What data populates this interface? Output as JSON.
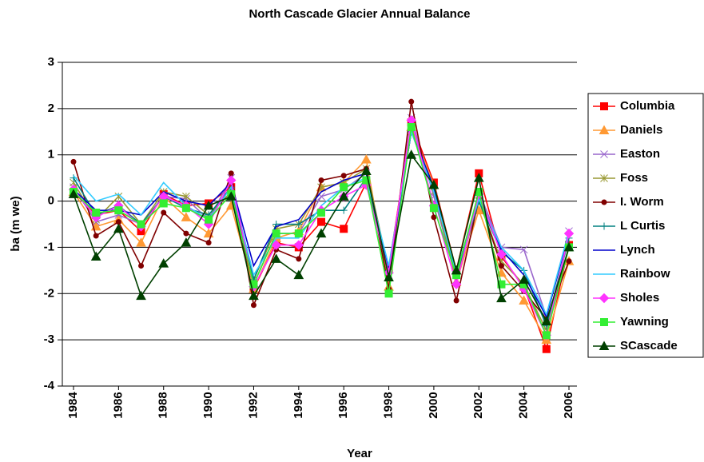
{
  "chart_data": {
    "type": "line",
    "title": "North Cascade Glacier Annual Balance",
    "x_label": "Year",
    "y_label": "ba (m we)",
    "x": [
      1984,
      1985,
      1986,
      1987,
      1988,
      1989,
      1990,
      1991,
      1992,
      1993,
      1994,
      1995,
      1996,
      1997,
      1998,
      1999,
      2000,
      2001,
      2002,
      2003,
      2004,
      2005,
      2006
    ],
    "xlim": [
      1984,
      2006
    ],
    "xticks": [
      1984,
      1986,
      1988,
      1990,
      1992,
      1994,
      1996,
      1998,
      2000,
      2002,
      2004,
      2006
    ],
    "ylim": [
      -4,
      3
    ],
    "yticks": [
      -4,
      -3,
      -2,
      -1,
      0,
      1,
      2,
      3
    ],
    "grid": true,
    "legend": "right",
    "series": [
      {
        "name": "Columbia",
        "color": "#ff0000",
        "marker": "square",
        "values": [
          0.2,
          -0.3,
          -0.2,
          -0.65,
          0.15,
          -0.1,
          -0.05,
          0.3,
          -1.9,
          -0.9,
          -1.0,
          -0.45,
          -0.6,
          0.4,
          -1.45,
          1.7,
          0.4,
          -1.5,
          0.6,
          -1.2,
          -1.85,
          -3.2,
          -0.95
        ]
      },
      {
        "name": "Daniels",
        "color": "#ff9933",
        "marker": "triangle",
        "values": [
          0.2,
          -0.55,
          -0.4,
          -0.9,
          0.1,
          -0.35,
          -0.7,
          -0.1,
          -1.9,
          -0.8,
          -0.65,
          0.3,
          0.4,
          0.9,
          -1.85,
          1.6,
          0.35,
          -1.75,
          -0.2,
          -1.55,
          -2.15,
          -3.0,
          -1.3
        ]
      },
      {
        "name": "Easton",
        "color": "#9966cc",
        "marker": "x",
        "values": [
          0.3,
          -0.45,
          -0.3,
          -0.5,
          0.1,
          0.05,
          -0.4,
          0.5,
          -1.8,
          -0.7,
          -0.7,
          0.1,
          0.25,
          0.6,
          -1.6,
          1.8,
          0.1,
          -1.7,
          0.2,
          -1.0,
          -1.05,
          -2.5,
          -0.65
        ]
      },
      {
        "name": "Foss",
        "color": "#999933",
        "marker": "star",
        "values": [
          0.4,
          -0.4,
          0.1,
          -0.5,
          0.2,
          0.1,
          -0.3,
          0.2,
          -1.7,
          -0.6,
          -0.5,
          0.3,
          0.4,
          0.7,
          -1.5,
          1.5,
          0.2,
          -1.7,
          0.0,
          -1.3,
          -1.8,
          -2.8,
          -1.0
        ]
      },
      {
        "name": "I. Worm",
        "color": "#800000",
        "marker": "circle",
        "values": [
          0.85,
          -0.75,
          -0.45,
          -1.4,
          -0.25,
          -0.7,
          -0.9,
          0.6,
          -2.25,
          -1.05,
          -1.25,
          0.45,
          0.55,
          0.7,
          -1.9,
          2.15,
          -0.35,
          -2.15,
          0.05,
          -1.4,
          -1.95,
          -2.55,
          -1.3
        ]
      },
      {
        "name": "L Curtis",
        "color": "#008080",
        "marker": "plus",
        "values": [
          0.5,
          -0.3,
          -0.1,
          -0.5,
          0.1,
          -0.15,
          -0.3,
          0.3,
          -1.7,
          -0.5,
          -0.5,
          -0.2,
          -0.2,
          0.5,
          -1.5,
          1.5,
          0.3,
          -1.6,
          0.0,
          -1.1,
          -1.5,
          -2.7,
          -0.8
        ]
      },
      {
        "name": "Lynch",
        "color": "#0000cc",
        "marker": "none",
        "values": [
          0.25,
          -0.2,
          -0.2,
          -0.3,
          0.2,
          0.0,
          -0.1,
          0.4,
          -1.4,
          -0.55,
          -0.4,
          0.2,
          0.45,
          0.6,
          -1.5,
          1.5,
          0.3,
          -1.55,
          0.1,
          -1.05,
          -1.6,
          -2.5,
          -0.7
        ]
      },
      {
        "name": "Rainbow",
        "color": "#33ccff",
        "marker": "none",
        "values": [
          0.55,
          0.0,
          0.15,
          -0.3,
          0.4,
          -0.1,
          -0.4,
          0.3,
          -1.6,
          -0.8,
          -0.8,
          -0.1,
          0.3,
          0.5,
          -1.4,
          1.5,
          0.2,
          -1.55,
          0.05,
          -1.0,
          -1.5,
          -2.45,
          -0.65
        ]
      },
      {
        "name": "Sholes",
        "color": "#ff33ff",
        "marker": "diamond",
        "values": [
          0.25,
          -0.35,
          -0.1,
          -0.55,
          0.1,
          -0.1,
          -0.5,
          0.45,
          -1.85,
          -0.95,
          -0.95,
          -0.2,
          0.1,
          0.35,
          -1.55,
          1.75,
          -0.1,
          -1.8,
          0.15,
          -1.15,
          -1.9,
          -2.9,
          -0.7
        ]
      },
      {
        "name": "Yawning",
        "color": "#33ee33",
        "marker": "square",
        "values": [
          0.2,
          -0.25,
          -0.2,
          -0.5,
          -0.05,
          -0.15,
          -0.4,
          0.15,
          -1.8,
          -0.7,
          -0.7,
          -0.25,
          0.3,
          0.45,
          -2.0,
          1.6,
          -0.15,
          -1.6,
          0.2,
          -1.8,
          -1.8,
          -2.9,
          -1.0
        ]
      },
      {
        "name": "SCascade",
        "color": "#004000",
        "marker": "triangle",
        "values": [
          0.15,
          -1.2,
          -0.6,
          -2.05,
          -1.35,
          -0.9,
          -0.1,
          0.1,
          -2.05,
          -1.25,
          -1.6,
          -0.7,
          0.1,
          0.65,
          -1.65,
          1.0,
          0.35,
          -1.5,
          0.5,
          -2.1,
          -1.7,
          -2.6,
          -1.0
        ]
      }
    ]
  }
}
